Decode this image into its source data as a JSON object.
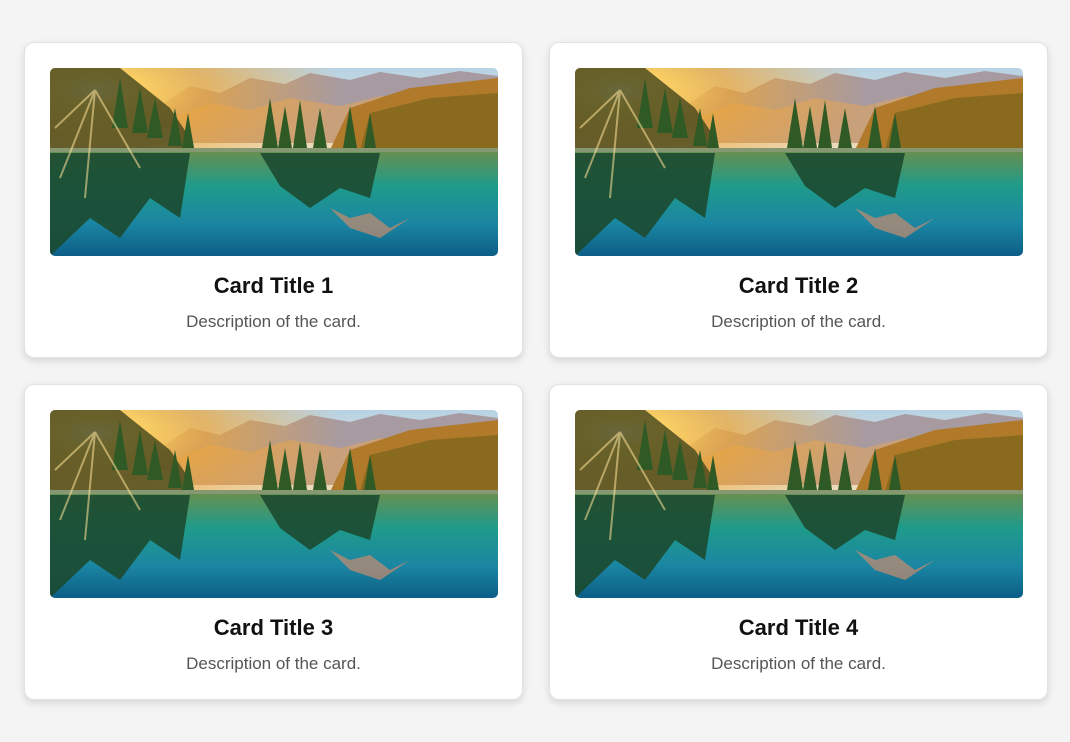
{
  "cards": [
    {
      "title": "Card Title 1",
      "description": "Description of the card.",
      "image": "mountain-lake-sunrise-image"
    },
    {
      "title": "Card Title 2",
      "description": "Description of the card.",
      "image": "mountain-lake-sunrise-image"
    },
    {
      "title": "Card Title 3",
      "description": "Description of the card.",
      "image": "mountain-lake-sunrise-image"
    },
    {
      "title": "Card Title 4",
      "description": "Description of the card.",
      "image": "mountain-lake-sunrise-image"
    }
  ],
  "colors": {
    "page_background": "#f4f4f4",
    "card_background": "#ffffff",
    "title_text": "#111111",
    "description_text": "#555555"
  }
}
